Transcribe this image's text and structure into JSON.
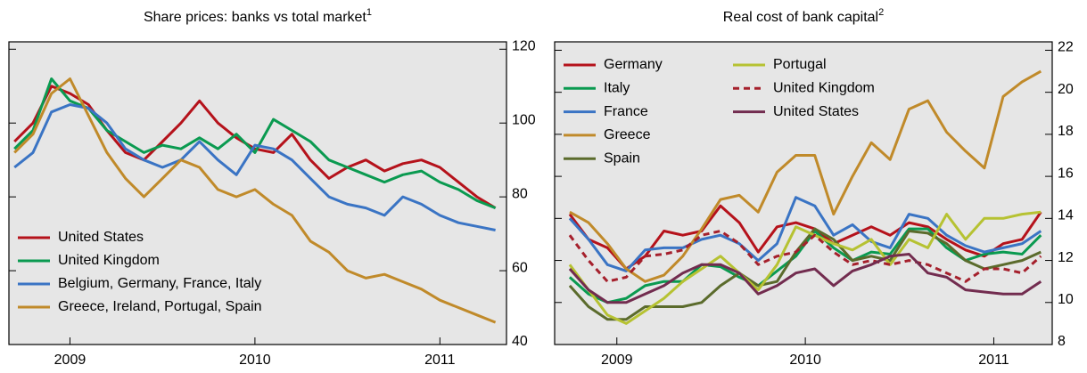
{
  "chart_data": [
    {
      "type": "line",
      "title": "Share prices: banks vs total market",
      "title_note": "1",
      "x": [
        2008.7,
        2008.8,
        2008.9,
        2009.0,
        2009.1,
        2009.2,
        2009.3,
        2009.4,
        2009.5,
        2009.6,
        2009.7,
        2009.8,
        2009.9,
        2010.0,
        2010.1,
        2010.2,
        2010.3,
        2010.4,
        2010.5,
        2010.6,
        2010.7,
        2010.8,
        2010.9,
        2011.0,
        2011.1,
        2011.2,
        2011.3
      ],
      "xlim": [
        2008.67,
        2011.36
      ],
      "xticks": [
        2009,
        2010,
        2011
      ],
      "ylim": [
        40,
        122
      ],
      "yticks": [
        40,
        60,
        80,
        100,
        120
      ],
      "legend": "lower left",
      "series": [
        {
          "name": "United States",
          "color": "#b5121b",
          "values": [
            95,
            100,
            110,
            108,
            105,
            98,
            92,
            90,
            95,
            100,
            106,
            100,
            96,
            93,
            92,
            97,
            90,
            85,
            88,
            90,
            87,
            89,
            90,
            88,
            84,
            80,
            77
          ]
        },
        {
          "name": "United Kingdom",
          "color": "#0a9a50",
          "values": [
            93,
            98,
            112,
            106,
            104,
            98,
            95,
            92,
            94,
            93,
            96,
            93,
            97,
            92,
            101,
            98,
            95,
            90,
            88,
            86,
            84,
            86,
            87,
            84,
            82,
            79,
            77
          ]
        },
        {
          "name": "Belgium, Germany, France, Italy",
          "color": "#3a74c4",
          "values": [
            88,
            92,
            103,
            105,
            104,
            100,
            93,
            90,
            88,
            90,
            95,
            90,
            86,
            94,
            93,
            90,
            85,
            80,
            78,
            77,
            75,
            80,
            78,
            75,
            73,
            72,
            71
          ]
        },
        {
          "name": "Greece, Ireland, Portugal, Spain",
          "color": "#c08a2a",
          "values": [
            92,
            97,
            108,
            112,
            102,
            92,
            85,
            80,
            85,
            90,
            88,
            82,
            80,
            82,
            78,
            75,
            68,
            65,
            60,
            58,
            59,
            57,
            55,
            52,
            50,
            48,
            46
          ]
        }
      ]
    },
    {
      "type": "line",
      "title": "Real cost of bank capital",
      "title_note": "2",
      "x": [
        2008.75,
        2008.85,
        2008.95,
        2009.05,
        2009.15,
        2009.25,
        2009.35,
        2009.45,
        2009.55,
        2009.65,
        2009.75,
        2009.85,
        2009.95,
        2010.05,
        2010.15,
        2010.25,
        2010.35,
        2010.45,
        2010.55,
        2010.65,
        2010.75,
        2010.85,
        2010.95,
        2011.05,
        2011.15,
        2011.25
      ],
      "xlim": [
        2008.67,
        2011.31
      ],
      "xticks": [
        2009,
        2010,
        2011
      ],
      "ylim": [
        8,
        22.4
      ],
      "yticks": [
        8,
        10,
        12,
        14,
        16,
        18,
        20,
        22
      ],
      "legend": "upper left",
      "series": [
        {
          "name": "Germany",
          "color": "#b5121b",
          "values": [
            14.2,
            13.0,
            12.6,
            11.6,
            12.2,
            13.4,
            13.2,
            13.4,
            14.6,
            13.8,
            12.4,
            13.6,
            13.8,
            13.5,
            12.8,
            13.2,
            13.6,
            13.2,
            13.8,
            13.6,
            13.0,
            12.5,
            12.2,
            12.8,
            13.0,
            14.3
          ]
        },
        {
          "name": "Italy",
          "color": "#0a9a50",
          "values": [
            11.2,
            10.4,
            10.0,
            10.2,
            10.8,
            11.0,
            11.0,
            11.8,
            11.7,
            11.2,
            10.8,
            11.5,
            12.2,
            13.4,
            12.6,
            12.0,
            12.4,
            12.3,
            13.5,
            13.5,
            12.6,
            12.0,
            12.3,
            12.4,
            12.3,
            13.2
          ]
        },
        {
          "name": "France",
          "color": "#3a74c4",
          "values": [
            14.0,
            13.0,
            11.8,
            11.5,
            12.5,
            12.6,
            12.6,
            13.0,
            13.2,
            12.8,
            12.0,
            12.8,
            15.0,
            14.6,
            13.2,
            13.7,
            12.9,
            12.6,
            14.2,
            14.0,
            13.2,
            12.7,
            12.4,
            12.6,
            12.8,
            13.4
          ]
        },
        {
          "name": "Greece",
          "color": "#c08a2a",
          "values": [
            14.3,
            13.8,
            12.8,
            11.6,
            11.0,
            11.3,
            12.2,
            13.5,
            14.9,
            15.1,
            14.3,
            16.2,
            17.0,
            17.0,
            14.2,
            16.0,
            17.6,
            16.8,
            19.2,
            19.6,
            18.1,
            17.2,
            16.4,
            19.8,
            20.5,
            21.0
          ]
        },
        {
          "name": "Spain",
          "color": "#5b6b2c",
          "values": [
            10.8,
            9.8,
            9.2,
            9.2,
            9.8,
            9.8,
            9.8,
            10.0,
            10.8,
            11.4,
            10.8,
            11.0,
            12.4,
            13.5,
            13.0,
            12.0,
            12.2,
            12.0,
            13.4,
            13.3,
            12.8,
            12.0,
            11.6,
            11.8,
            12.0,
            12.4
          ]
        },
        {
          "name": "Portugal",
          "color": "#b6c232",
          "values": [
            11.8,
            10.6,
            9.4,
            9.0,
            9.6,
            10.2,
            11.0,
            11.6,
            12.2,
            11.4,
            10.6,
            11.8,
            13.6,
            13.2,
            12.8,
            12.5,
            13.0,
            11.8,
            13.0,
            12.6,
            14.2,
            13.0,
            14.0,
            14.0,
            14.2,
            14.3
          ]
        },
        {
          "name": "United Kingdom",
          "color": "#a5202c",
          "dashed": true,
          "values": [
            13.2,
            12.0,
            11.0,
            11.2,
            12.2,
            12.3,
            12.5,
            13.2,
            13.4,
            12.8,
            11.8,
            12.2,
            12.4,
            13.2,
            12.4,
            11.8,
            12.0,
            11.8,
            12.0,
            11.8,
            11.4,
            11.0,
            11.6,
            11.6,
            11.4,
            12.2
          ]
        },
        {
          "name": "United States",
          "color": "#722c4f",
          "values": [
            11.6,
            10.6,
            10.0,
            10.0,
            10.4,
            10.8,
            11.4,
            11.8,
            11.8,
            11.4,
            10.4,
            10.8,
            11.4,
            11.6,
            10.8,
            11.5,
            11.8,
            12.2,
            12.3,
            11.4,
            11.2,
            10.6,
            10.5,
            10.4,
            10.4,
            11.0
          ]
        }
      ]
    }
  ]
}
